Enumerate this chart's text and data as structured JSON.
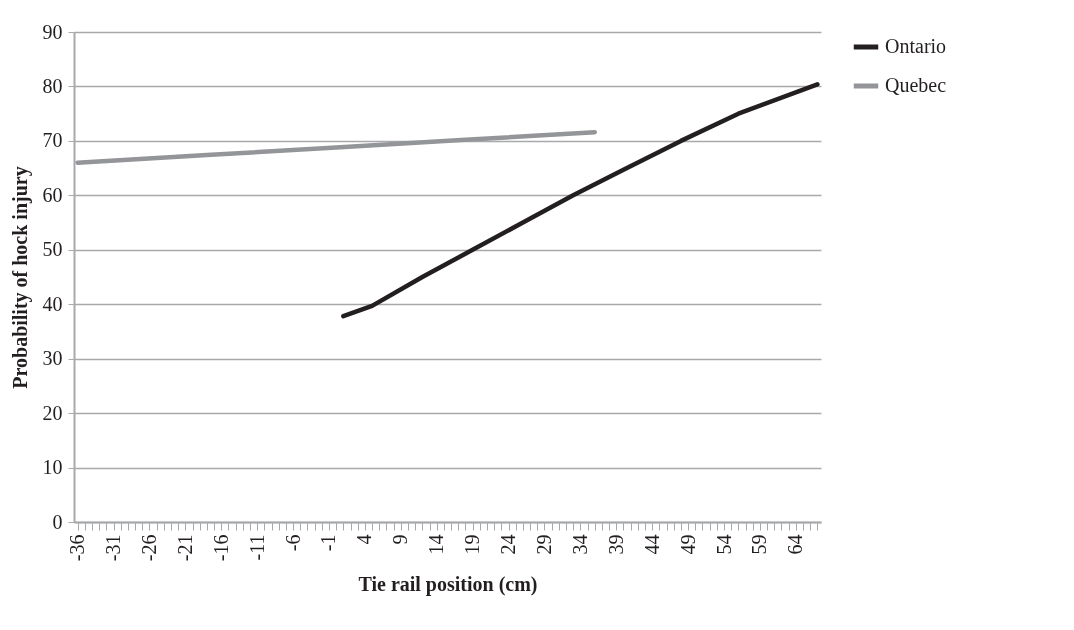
{
  "chart_data": {
    "type": "line",
    "xlabel": "Tie rail position (cm)",
    "ylabel": "Probability of hock injury",
    "series": [
      {
        "name": "Ontario",
        "color": "#231f20",
        "x": [
          1,
          5,
          12,
          19,
          26,
          33,
          40,
          48,
          56,
          67
        ],
        "values": [
          37.8,
          39.7,
          45,
          50,
          55,
          60,
          64.7,
          70,
          75,
          80.4
        ]
      },
      {
        "name": "Quebec",
        "color": "#939598",
        "x": [
          -36,
          -18,
          0,
          18,
          36
        ],
        "values": [
          66.0,
          67.4,
          68.8,
          70.2,
          71.6
        ]
      }
    ],
    "xlim": [
      -36.5,
      67.5
    ],
    "xticks": [
      -36,
      {
        "value": -35,
        "label": null
      },
      {
        "value": -34,
        "label": null
      },
      {
        "value": -33,
        "label": null
      },
      {
        "value": -32,
        "label": null
      },
      -31,
      {
        "value": -30,
        "label": null
      },
      {
        "value": -29,
        "label": null
      },
      {
        "value": -28,
        "label": null
      },
      {
        "value": -27,
        "label": null
      },
      -26,
      {
        "value": -25,
        "label": null
      },
      {
        "value": -24,
        "label": null
      },
      {
        "value": -23,
        "label": null
      },
      {
        "value": -22,
        "label": null
      },
      -21,
      {
        "value": -20,
        "label": null
      },
      {
        "value": -19,
        "label": null
      },
      {
        "value": -18,
        "label": null
      },
      {
        "value": -17,
        "label": null
      },
      -16,
      {
        "value": -15,
        "label": null
      },
      {
        "value": -14,
        "label": null
      },
      {
        "value": -13,
        "label": null
      },
      {
        "value": -12,
        "label": null
      },
      -11,
      {
        "value": -10,
        "label": null
      },
      {
        "value": -9,
        "label": null
      },
      {
        "value": -8,
        "label": null
      },
      {
        "value": -7,
        "label": null
      },
      -6,
      {
        "value": -5,
        "label": null
      },
      {
        "value": -4,
        "label": null
      },
      {
        "value": -3,
        "label": null
      },
      {
        "value": -2,
        "label": null
      },
      -1,
      {
        "value": 0,
        "label": null
      },
      {
        "value": 1,
        "label": null
      },
      {
        "value": 2,
        "label": null
      },
      {
        "value": 3,
        "label": null
      },
      4,
      {
        "value": 5,
        "label": null
      },
      {
        "value": 6,
        "label": null
      },
      {
        "value": 7,
        "label": null
      },
      {
        "value": 8,
        "label": null
      },
      9,
      {
        "value": 10,
        "label": null
      },
      {
        "value": 11,
        "label": null
      },
      {
        "value": 12,
        "label": null
      },
      {
        "value": 13,
        "label": null
      },
      14,
      {
        "value": 15,
        "label": null
      },
      {
        "value": 16,
        "label": null
      },
      {
        "value": 17,
        "label": null
      },
      {
        "value": 18,
        "label": null
      },
      19,
      {
        "value": 20,
        "label": null
      },
      {
        "value": 21,
        "label": null
      },
      {
        "value": 22,
        "label": null
      },
      {
        "value": 23,
        "label": null
      },
      24,
      {
        "value": 25,
        "label": null
      },
      {
        "value": 26,
        "label": null
      },
      {
        "value": 27,
        "label": null
      },
      {
        "value": 28,
        "label": null
      },
      29,
      {
        "value": 30,
        "label": null
      },
      {
        "value": 31,
        "label": null
      },
      {
        "value": 32,
        "label": null
      },
      {
        "value": 33,
        "label": null
      },
      34,
      {
        "value": 35,
        "label": null
      },
      {
        "value": 36,
        "label": null
      },
      {
        "value": 37,
        "label": null
      },
      {
        "value": 38,
        "label": null
      },
      39,
      {
        "value": 40,
        "label": null
      },
      {
        "value": 41,
        "label": null
      },
      {
        "value": 42,
        "label": null
      },
      {
        "value": 43,
        "label": null
      },
      44,
      {
        "value": 45,
        "label": null
      },
      {
        "value": 46,
        "label": null
      },
      {
        "value": 47,
        "label": null
      },
      {
        "value": 48,
        "label": null
      },
      49,
      {
        "value": 50,
        "label": null
      },
      {
        "value": 51,
        "label": null
      },
      {
        "value": 52,
        "label": null
      },
      {
        "value": 53,
        "label": null
      },
      54,
      {
        "value": 55,
        "label": null
      },
      {
        "value": 56,
        "label": null
      },
      {
        "value": 57,
        "label": null
      },
      {
        "value": 58,
        "label": null
      },
      59,
      {
        "value": 60,
        "label": null
      },
      {
        "value": 61,
        "label": null
      },
      {
        "value": 62,
        "label": null
      },
      {
        "value": 63,
        "label": null
      },
      64,
      {
        "value": 65,
        "label": null
      },
      {
        "value": 66,
        "label": null
      },
      {
        "value": 67,
        "label": null
      }
    ],
    "ylim": [
      0,
      90
    ],
    "yticks": [
      0,
      10,
      20,
      30,
      40,
      50,
      60,
      70,
      80,
      90
    ],
    "grid": "y",
    "legend": "right",
    "marker": "none",
    "line_style": "solid"
  }
}
